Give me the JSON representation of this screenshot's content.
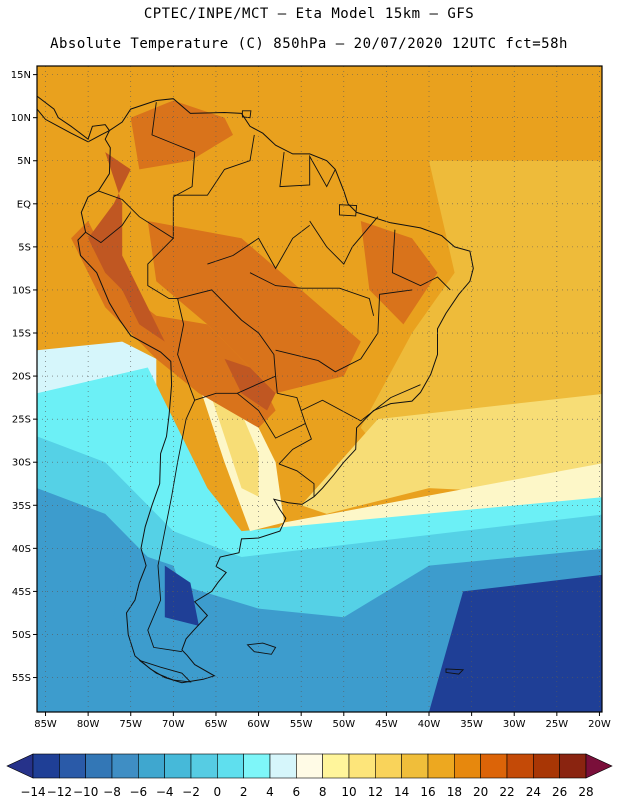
{
  "header": {
    "line1": "CPTEC/INPE/MCT –  Eta Model 15km – GFS",
    "line2": "Absolute Temperature (C) 850hPa – 20/07/2020 12UTC fct=58h"
  },
  "axes": {
    "lat_labels": [
      "15N",
      "10N",
      "5N",
      "EQ",
      "5S",
      "10S",
      "15S",
      "20S",
      "25S",
      "30S",
      "35S",
      "40S",
      "45S",
      "50S",
      "55S"
    ],
    "lon_labels": [
      "85W",
      "80W",
      "75W",
      "70W",
      "65W",
      "60W",
      "55W",
      "50W",
      "45W",
      "40W",
      "35W",
      "30W",
      "25W",
      "20W"
    ]
  },
  "colorbar": {
    "labels": [
      "-14",
      "-12",
      "-10",
      "-8",
      "-6",
      "-4",
      "-2",
      "0",
      "2",
      "4",
      "6",
      "8",
      "10",
      "12",
      "14",
      "16",
      "18",
      "20",
      "22",
      "24",
      "26",
      "28"
    ],
    "colors": [
      "#1f3f96",
      "#2a5aa8",
      "#3377b6",
      "#3f8ec4",
      "#3fa7cf",
      "#46b9d9",
      "#56cce3",
      "#5fdfee",
      "#7ef6f9",
      "#d6f6fb",
      "#fffbe6",
      "#fff59b",
      "#fde57a",
      "#f9d35a",
      "#f0be3a",
      "#eda820",
      "#e7880d",
      "#dc6408",
      "#c44a07",
      "#a83605",
      "#8a2410"
    ],
    "under_color": "#26328a",
    "over_color": "#7a0f3a"
  },
  "map_colors": {
    "warm": "#e9a11e",
    "warmer": "#d9731b",
    "hot": "#c05722",
    "light_orange": "#eebb3a",
    "yellow": "#f7dd76",
    "pale": "#fdf7c8",
    "pale_blue": "#d6f6fb",
    "cyan": "#6cf0f6",
    "mid_cyan": "#55d1e6",
    "blue": "#3d9ccd",
    "dark_blue": "#1f3f96",
    "coast": "#111111"
  }
}
